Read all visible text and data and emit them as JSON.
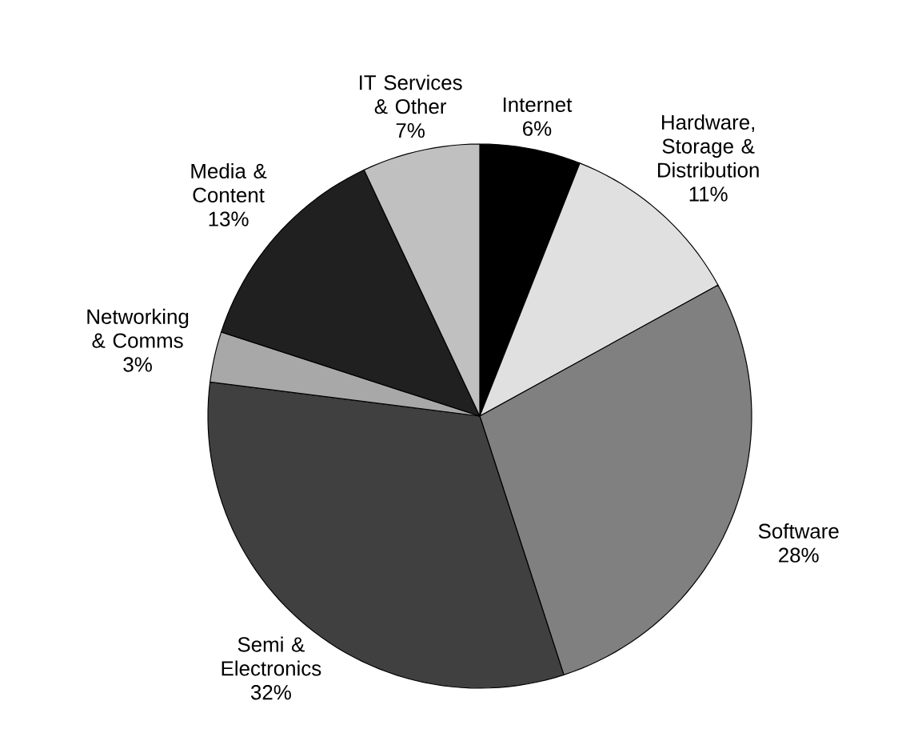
{
  "chart_data": {
    "type": "pie",
    "categories": [
      "Internet",
      "Hardware, Storage & Distribution",
      "Software",
      "Semi & Electronics",
      "Networking & Comms",
      "Media & Content",
      "IT Services & Other"
    ],
    "values": [
      6,
      11,
      28,
      32,
      3,
      13,
      7
    ],
    "value_labels": [
      "6%",
      "11%",
      "28%",
      "32%",
      "3%",
      "13%",
      "7%"
    ],
    "colors": [
      "#000000",
      "#e0e0e0",
      "#808080",
      "#404040",
      "#a8a8a8",
      "#202020",
      "#c0c0c0"
    ]
  }
}
